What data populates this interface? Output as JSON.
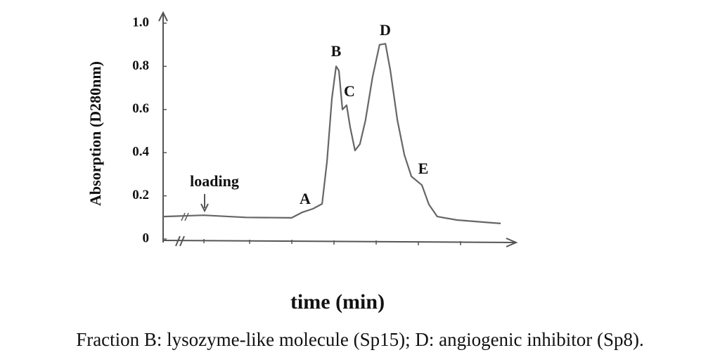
{
  "chart_data": {
    "type": "line",
    "y_label": "Absorption (D280nm)",
    "x_label": "time (min)",
    "caption": "Fraction B: lysozyme-like molecule (Sp15); D: angiogenic inhibitor (Sp8).",
    "annotations": [
      "loading",
      "A",
      "B",
      "C",
      "D",
      "E"
    ],
    "xlim": [
      0,
      100
    ],
    "ylim": [
      0,
      1
    ],
    "yticks": [
      {
        "value": 0,
        "label": "0"
      },
      {
        "value": 0.2,
        "label": "0.2"
      },
      {
        "value": 0.4,
        "label": "0.4"
      },
      {
        "value": 0.6,
        "label": "0.6"
      },
      {
        "value": 0.8,
        "label": "0.8"
      },
      {
        "value": 1,
        "label": "1.0"
      }
    ],
    "series": [
      {
        "color": "#666666",
        "x": [
          0,
          5.6,
          11.6,
          23.7,
          36.7,
          39.8,
          42.8,
          45.4,
          46.8,
          48.2,
          49.4,
          50.2,
          51.2,
          52.4,
          53.4,
          54.8,
          56.2,
          57.8,
          59.8,
          61.8,
          63.5,
          64.9,
          66.9,
          68.9,
          70.9,
          73.9,
          75.9,
          78.3,
          83.9,
          94.0,
          96.4
        ],
        "values": [
          0.104,
          0.107,
          0.11,
          0.1,
          0.098,
          0.124,
          0.14,
          0.163,
          0.36,
          0.65,
          0.8,
          0.78,
          0.6,
          0.62,
          0.52,
          0.41,
          0.44,
          0.55,
          0.75,
          0.9,
          0.905,
          0.78,
          0.55,
          0.39,
          0.29,
          0.25,
          0.16,
          0.104,
          0.088,
          0.075,
          0.072
        ]
      }
    ]
  }
}
